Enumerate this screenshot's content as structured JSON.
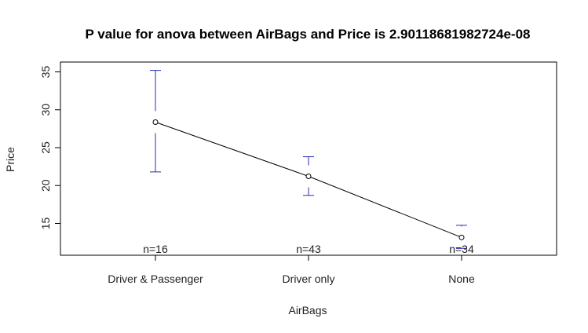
{
  "chart_data": {
    "type": "line",
    "title": "P value for anova between AirBags  and  Price  is  2.90118681982724e-08",
    "xlabel": "AirBags",
    "ylabel": "Price",
    "categories": [
      "Driver & Passenger",
      "Driver only",
      "None"
    ],
    "yticks": [
      "15",
      "20",
      "25",
      "30",
      "35"
    ],
    "ytick_values": [
      15,
      20,
      25,
      30,
      35
    ],
    "ylim": [
      10.8,
      36.3
    ],
    "means": [
      28.37,
      21.22,
      13.15
    ],
    "ci_upper": [
      35.2,
      23.8,
      14.75
    ],
    "ci_lower": [
      21.8,
      18.7,
      11.7
    ],
    "counts": [
      "n=16",
      "n=43",
      "n=34"
    ],
    "colors": {
      "errorbar": "#2b2bb0",
      "line": "#000000",
      "axis": "#000000"
    }
  }
}
